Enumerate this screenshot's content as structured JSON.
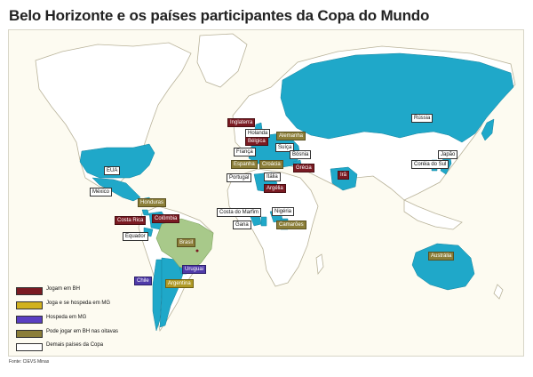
{
  "title": "Belo Horizonte e os países participantes da Copa do Mundo",
  "source": "Fonte: CIEVS Minas",
  "colors": {
    "land": "#ffffff",
    "border": "#b9b39a",
    "ocean": "#fdfbf1",
    "participant": "#1fa8c9",
    "brazil": "#a8c98a",
    "bh": "#7a1a22",
    "bh_mg": "#b09a26",
    "mg": "#4f3aa8",
    "pode": "#8b7e38"
  },
  "legend": [
    {
      "label": "Jogam em BH",
      "color": "#7a1a22"
    },
    {
      "label": "Joga e se hospeda em MG",
      "color": "#d1b21e"
    },
    {
      "label": "Hospeda em MG",
      "color": "#5a3fc2"
    },
    {
      "label": "Pode jogar em BH nas oitavas",
      "color": "#8b7e38"
    },
    {
      "label": "Demais países da Copa",
      "color": "#ffffff"
    }
  ],
  "countries": [
    {
      "name": "Inglaterra",
      "category": "bh"
    },
    {
      "name": "Holanda",
      "category": "other"
    },
    {
      "name": "Alemanha",
      "category": "pode"
    },
    {
      "name": "Bélgica",
      "category": "bh"
    },
    {
      "name": "Suíça",
      "category": "other"
    },
    {
      "name": "Bósnia",
      "category": "other"
    },
    {
      "name": "França",
      "category": "other"
    },
    {
      "name": "Espanha",
      "category": "pode"
    },
    {
      "name": "Croácia",
      "category": "pode"
    },
    {
      "name": "Grécia",
      "category": "bh"
    },
    {
      "name": "Portugal",
      "category": "other"
    },
    {
      "name": "Itália",
      "category": "other"
    },
    {
      "name": "Argélia",
      "category": "bh"
    },
    {
      "name": "Rússia",
      "category": "other"
    },
    {
      "name": "Japão",
      "category": "other"
    },
    {
      "name": "Coréia do Sul",
      "category": "other"
    },
    {
      "name": "Irã",
      "category": "bh"
    },
    {
      "name": "EUA",
      "category": "other"
    },
    {
      "name": "México",
      "category": "other"
    },
    {
      "name": "Honduras",
      "category": "pode"
    },
    {
      "name": "Costa Rica",
      "category": "bh"
    },
    {
      "name": "Colômbia",
      "category": "bh"
    },
    {
      "name": "Equador",
      "category": "other"
    },
    {
      "name": "Brasil",
      "category": "pode"
    },
    {
      "name": "Costa do Marfim",
      "category": "other"
    },
    {
      "name": "Nigéria",
      "category": "other"
    },
    {
      "name": "Gana",
      "category": "other"
    },
    {
      "name": "Camarões",
      "category": "pode"
    },
    {
      "name": "Uruguai",
      "category": "mg"
    },
    {
      "name": "Chile",
      "category": "mg"
    },
    {
      "name": "Argentina",
      "category": "bhmg"
    },
    {
      "name": "Austrália",
      "category": "pode"
    }
  ]
}
